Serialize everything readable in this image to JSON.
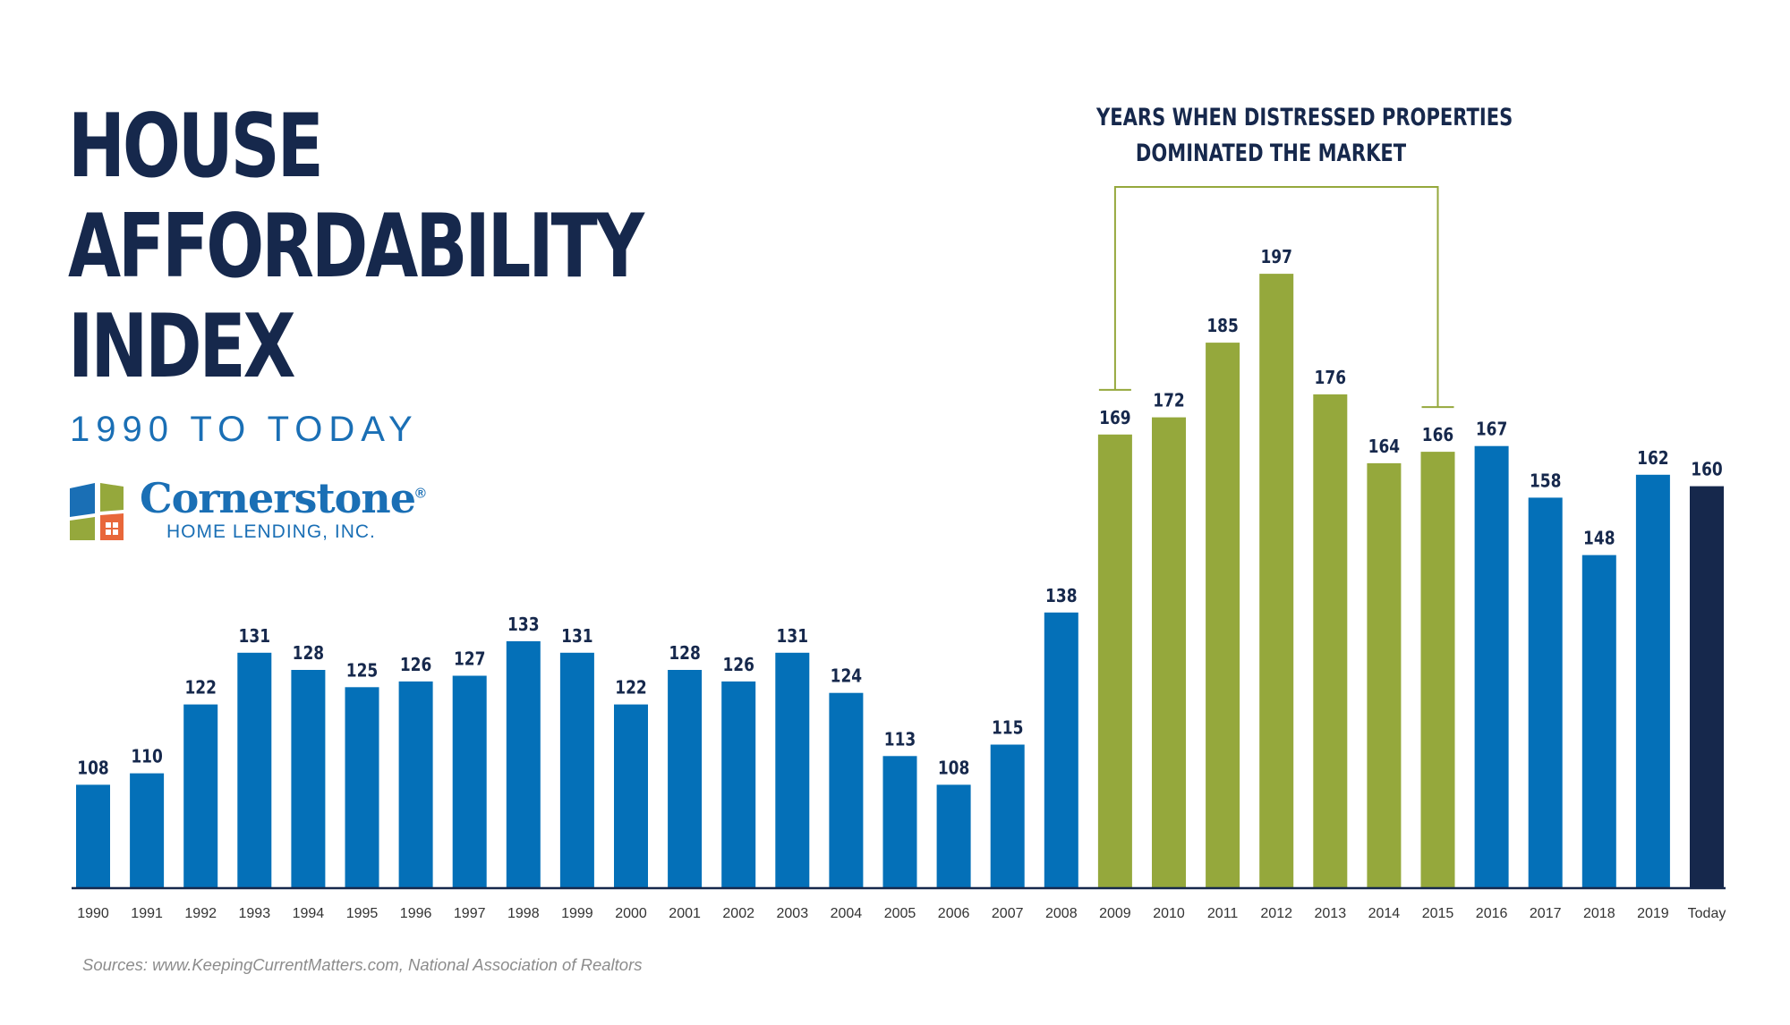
{
  "header": {
    "title_lines": [
      "HOUSE",
      "AFFORDABILITY",
      "INDEX"
    ],
    "subtitle": "1990 TO TODAY"
  },
  "logo": {
    "name": "Cornerstone",
    "registered_mark": "®",
    "tagline": "HOME LENDING, INC."
  },
  "annotation": {
    "lines": [
      "YEARS WHEN DISTRESSED PROPERTIES",
      "DOMINATED THE MARKET"
    ],
    "range_start": "2009",
    "range_end": "2015"
  },
  "source": "Sources: www.KeepingCurrentMatters.com, National Association of Realtors",
  "colors": {
    "normal": "#0470b8",
    "distressed": "#95a83c",
    "today": "#16284c",
    "bracket": "#95a83c",
    "label": "#16284c",
    "axis": "#16284c",
    "tick_label": "#333333"
  },
  "chart_data": {
    "type": "bar",
    "categories": [
      "1990",
      "1991",
      "1992",
      "1993",
      "1994",
      "1995",
      "1996",
      "1997",
      "1998",
      "1999",
      "2000",
      "2001",
      "2002",
      "2003",
      "2004",
      "2005",
      "2006",
      "2007",
      "2008",
      "2009",
      "2010",
      "2011",
      "2012",
      "2013",
      "2014",
      "2015",
      "2016",
      "2017",
      "2018",
      "2019",
      "Today"
    ],
    "values": [
      108,
      110,
      122,
      131,
      128,
      125,
      126,
      127,
      133,
      131,
      122,
      128,
      126,
      131,
      124,
      113,
      108,
      115,
      138,
      169,
      172,
      185,
      197,
      176,
      164,
      166,
      167,
      158,
      148,
      162,
      160
    ],
    "categories_highlighted": [
      "2009",
      "2010",
      "2011",
      "2012",
      "2013",
      "2014",
      "2015"
    ],
    "category_current": "Today",
    "data_labels": true,
    "title": "HOUSE AFFORDABILITY INDEX",
    "subtitle": "1990 TO TODAY",
    "ylim": [
      90,
      200
    ],
    "grid": false,
    "legend": "none"
  }
}
